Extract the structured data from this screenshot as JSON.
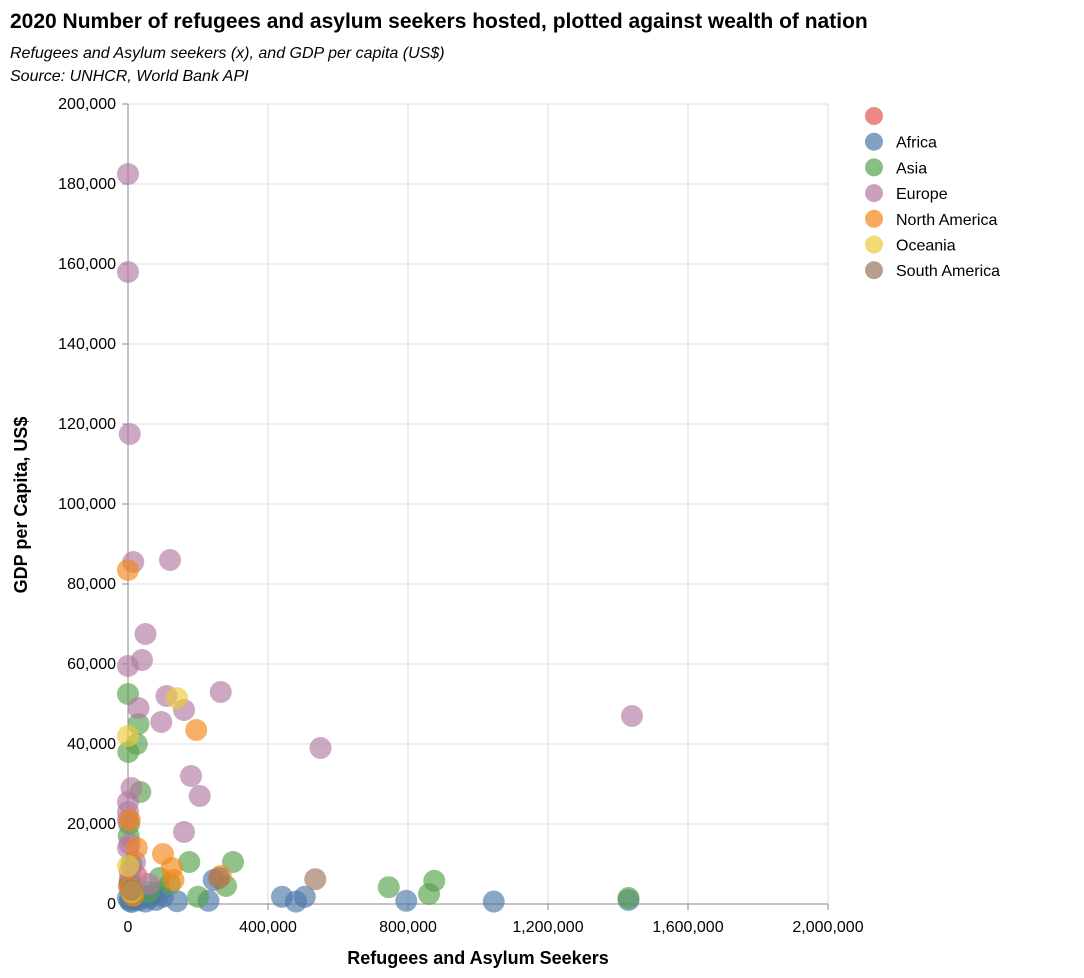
{
  "chart_data": {
    "type": "scatter",
    "title": "2020 Number of refugees and asylum seekers hosted, plotted against wealth of nation",
    "subtitle": [
      "Refugees and Asylum seekers (x), and GDP per capita (US$)",
      "Source: UNHCR, World Bank API"
    ],
    "xlabel": "Refugees and Asylum Seekers",
    "ylabel": "GDP per Capita, US$",
    "xlim": [
      0,
      2000000
    ],
    "ylim": [
      0,
      200000
    ],
    "x_ticks": [
      0,
      400000,
      800000,
      1200000,
      1600000,
      2000000
    ],
    "x_tick_labels": [
      "0",
      "400,000",
      "800,000",
      "1,200,000",
      "1,600,000",
      "2,000,000"
    ],
    "y_ticks": [
      0,
      20000,
      40000,
      60000,
      80000,
      100000,
      120000,
      140000,
      160000,
      180000,
      200000
    ],
    "y_tick_labels": [
      "0",
      "20,000",
      "40,000",
      "60,000",
      "80,000",
      "100,000",
      "120,000",
      "140,000",
      "160,000",
      "180,000",
      "200,000"
    ],
    "grid": true,
    "legend_position": "right",
    "series": [
      {
        "name": "",
        "color": "#e45756",
        "points": [
          [
            3000,
            4500
          ],
          [
            8000,
            3000
          ],
          [
            15000,
            2000
          ],
          [
            25000,
            7000
          ],
          [
            5000,
            6000
          ]
        ]
      },
      {
        "name": "Africa",
        "color": "#4c78a8",
        "points": [
          [
            0,
            1500
          ],
          [
            5000,
            800
          ],
          [
            10000,
            500
          ],
          [
            20000,
            1200
          ],
          [
            30000,
            900
          ],
          [
            40000,
            2000
          ],
          [
            50000,
            600
          ],
          [
            60000,
            1500
          ],
          [
            70000,
            2500
          ],
          [
            80000,
            1000
          ],
          [
            90000,
            3000
          ],
          [
            100000,
            1800
          ],
          [
            140000,
            700
          ],
          [
            230000,
            800
          ],
          [
            245000,
            6000
          ],
          [
            440000,
            1800
          ],
          [
            480000,
            600
          ],
          [
            505000,
            1800
          ],
          [
            795000,
            800
          ],
          [
            1045000,
            600
          ],
          [
            1430000,
            1000
          ]
        ]
      },
      {
        "name": "Asia",
        "color": "#54a24b",
        "points": [
          [
            0,
            52500
          ],
          [
            1000,
            38000
          ],
          [
            3000,
            20000
          ],
          [
            2000,
            17000
          ],
          [
            30000,
            45000
          ],
          [
            25000,
            40000
          ],
          [
            35000,
            28000
          ],
          [
            10000,
            10000
          ],
          [
            5000,
            5000
          ],
          [
            15000,
            2500
          ],
          [
            60000,
            3000
          ],
          [
            90000,
            6500
          ],
          [
            120000,
            5000
          ],
          [
            175000,
            10500
          ],
          [
            200000,
            1800
          ],
          [
            280000,
            4500
          ],
          [
            300000,
            10500
          ],
          [
            745000,
            4200
          ],
          [
            860000,
            2500
          ],
          [
            875000,
            5800
          ],
          [
            1430000,
            1500
          ]
        ]
      },
      {
        "name": "Europe",
        "color": "#b279a2",
        "points": [
          [
            0,
            182500
          ],
          [
            0,
            158000
          ],
          [
            5000,
            117500
          ],
          [
            15000,
            85500
          ],
          [
            120000,
            86000
          ],
          [
            50000,
            67500
          ],
          [
            40000,
            61000
          ],
          [
            0,
            59500
          ],
          [
            30000,
            49000
          ],
          [
            110000,
            52000
          ],
          [
            160000,
            48500
          ],
          [
            265000,
            53000
          ],
          [
            95000,
            45500
          ],
          [
            550000,
            39000
          ],
          [
            1440000,
            47000
          ],
          [
            10000,
            29000
          ],
          [
            180000,
            32000
          ],
          [
            205000,
            27000
          ],
          [
            0,
            25500
          ],
          [
            0,
            23000
          ],
          [
            0,
            21000
          ],
          [
            160000,
            18000
          ],
          [
            5000,
            15000
          ],
          [
            0,
            14000
          ],
          [
            20000,
            10500
          ],
          [
            5000,
            8000
          ],
          [
            60000,
            5000
          ]
        ]
      },
      {
        "name": "North America",
        "color": "#f58518",
        "points": [
          [
            0,
            83500
          ],
          [
            195000,
            43500
          ],
          [
            5000,
            21000
          ],
          [
            25000,
            14000
          ],
          [
            100000,
            12500
          ],
          [
            125000,
            9000
          ],
          [
            130000,
            6000
          ],
          [
            5000,
            4000
          ],
          [
            15000,
            2000
          ],
          [
            265000,
            7000
          ]
        ]
      },
      {
        "name": "Oceania",
        "color": "#eeca3b",
        "points": [
          [
            0,
            42000
          ],
          [
            140000,
            51500
          ],
          [
            0,
            9500
          ],
          [
            10000,
            3000
          ]
        ]
      },
      {
        "name": "South America",
        "color": "#9d755d",
        "points": [
          [
            535000,
            6200
          ],
          [
            260000,
            6500
          ],
          [
            10000,
            3500
          ]
        ]
      }
    ]
  }
}
